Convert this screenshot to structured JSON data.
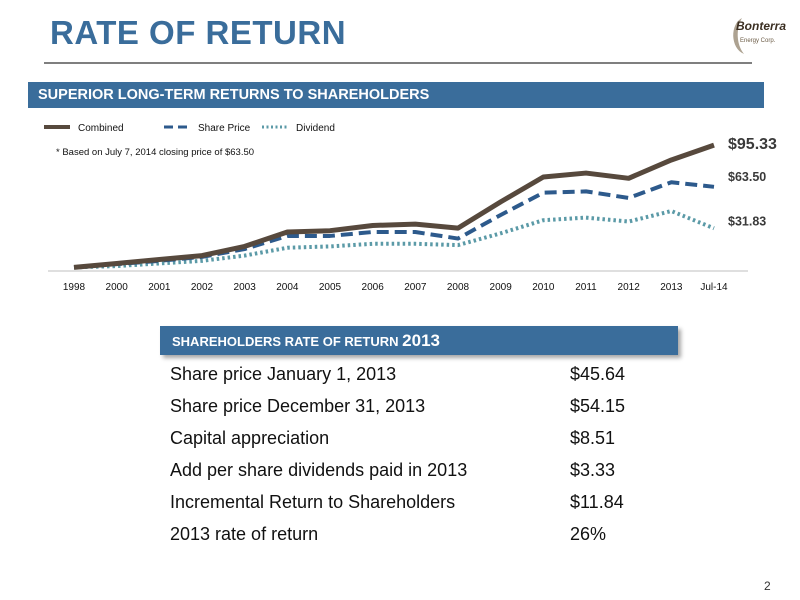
{
  "page": {
    "title": "Rate of Return",
    "page_number": "2"
  },
  "logo": {
    "text": "Bonterra",
    "subtext": "Energy Corp."
  },
  "banner": {
    "text": "SUPERIOR LONG-TERM RETURNS TO SHAREHOLDERS"
  },
  "chart_data": {
    "type": "line",
    "title": "",
    "xlabel": "",
    "ylabel": "",
    "note": "* Based on July 7, 2014 closing price of $63.50",
    "categories": [
      "1998",
      "2000",
      "2001",
      "2002",
      "2003",
      "2004",
      "2005",
      "2006",
      "2007",
      "2008",
      "2009",
      "2010",
      "2011",
      "2012",
      "2013",
      "Jul-14"
    ],
    "ylim": [
      0,
      100
    ],
    "grid": false,
    "legend": "top-left",
    "series": [
      {
        "name": "Combined",
        "style": "solid",
        "color": "#57493d",
        "values": [
          2,
          5,
          8,
          11,
          18,
          29,
          30,
          34,
          35,
          32,
          52,
          71,
          74,
          70,
          84,
          95.33
        ]
      },
      {
        "name": "Share Price",
        "style": "dashed",
        "color": "#2d5a8c",
        "values": [
          2,
          4.5,
          7,
          10,
          16,
          26,
          26,
          29,
          29,
          24,
          42,
          59,
          60,
          55,
          67,
          63.5
        ]
      },
      {
        "name": "Dividend",
        "style": "dotted",
        "color": "#5b9aa7",
        "values": [
          2,
          3,
          5,
          7,
          11,
          17,
          18,
          20,
          20,
          19,
          28,
          38,
          40,
          37,
          45,
          31.83
        ]
      }
    ],
    "end_labels": [
      "$95.33",
      "$63.50",
      "$31.83"
    ]
  },
  "returns_panel": {
    "header": "SHAREHOLDERS RATE OF RETURN",
    "header_year": "2013",
    "rows": [
      {
        "label": "Share price January 1, 2013",
        "value": "$45.64"
      },
      {
        "label": "Share price December 31, 2013",
        "value": "$54.15"
      },
      {
        "label": "Capital appreciation",
        "value": "$8.51"
      },
      {
        "label": "Add per share dividends paid in 2013",
        "value": "$3.33"
      },
      {
        "label": "Incremental Return to Shareholders",
        "value": "$11.84"
      },
      {
        "label": "2013 rate of return",
        "value": "26%"
      }
    ]
  }
}
